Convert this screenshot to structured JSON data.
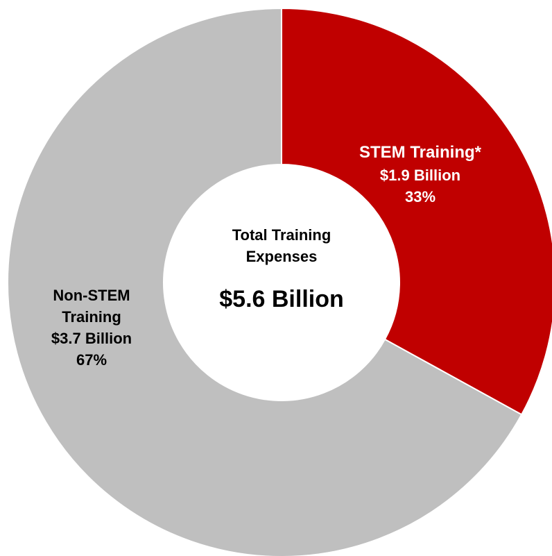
{
  "chart_data": {
    "type": "donut",
    "categories": [
      "STEM Training*",
      "Non-STEM Training"
    ],
    "values": [
      33,
      67
    ],
    "value_labels": [
      "33%",
      "67%"
    ],
    "amount_labels": [
      "$1.9 Billion",
      "$3.7 Billion"
    ],
    "colors": [
      "#c00000",
      "#bfbfbf"
    ],
    "center_title": "Total Training Expenses",
    "center_value": "$5.6 Billion"
  }
}
